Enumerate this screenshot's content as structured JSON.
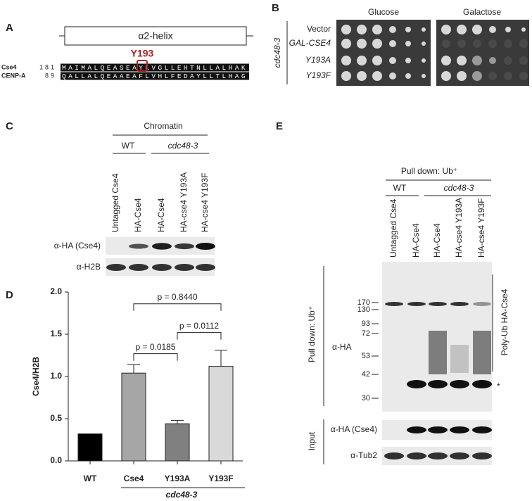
{
  "panels": [
    "A",
    "B",
    "C",
    "D",
    "E"
  ],
  "panel_a": {
    "domain": "α2-helix",
    "residue": "Y193",
    "rows": [
      {
        "name": "Cse4",
        "start": 181,
        "sequence": "MAIMALQEASEAYLVGLLEHTNLLALHAK"
      },
      {
        "name": "CENP-A",
        "start": 89,
        "sequence": "QALLALQEAAEAFLVHLFEDAYLLTLHAG"
      }
    ]
  },
  "panel_b": {
    "strain": "cdc48-3",
    "media": [
      "Glucose",
      "Galactose"
    ],
    "rows": [
      "Vector",
      "GAL-CSE4",
      "Y193A",
      "Y193F"
    ]
  },
  "panel_c": {
    "title": "Chromatin",
    "groups": [
      "WT",
      "cdc48-3"
    ],
    "lanes": [
      "Untagged Cse4",
      "HA-Cse4",
      "HA-Cse4",
      "HA-cse4 Y193A",
      "HA-cse4 Y193F"
    ],
    "blots": [
      "α-HA (Cse4)",
      "α-H2B"
    ]
  },
  "chart_data": {
    "type": "bar",
    "ylabel": "Cse4/H2B",
    "categories": [
      "WT",
      "Cse4",
      "Y193A",
      "Y193F"
    ],
    "values": [
      0.32,
      1.04,
      0.44,
      1.12
    ],
    "errors": [
      null,
      0.1,
      0.04,
      0.19
    ],
    "colors": [
      "#000000",
      "#a6a6a6",
      "#808080",
      "#d9d9d9"
    ],
    "ylim": [
      0,
      2
    ],
    "yticks": [
      {
        "value": 0,
        "label": "0.0"
      },
      0.5,
      {
        "value": 1,
        "label": "1.0"
      },
      1.5,
      {
        "value": 2,
        "label": "2.0"
      }
    ],
    "annotations": [
      "p = 0.8440",
      "p = 0.0112",
      "p = 0.0185"
    ],
    "group_label": "cdc48-3"
  },
  "panel_e": {
    "title": "Pull down: Ub⁺",
    "groups": [
      "WT",
      "cdc48-3"
    ],
    "lanes": [
      "Untagged Cse4",
      "HA-Cse4",
      "HA-Cse4",
      "HA-cse4 Y193A",
      "HA-cse4 Y193F"
    ],
    "sections": [
      "Pull down: Ub⁺",
      "Input"
    ],
    "markers": [
      170,
      130,
      93,
      72,
      53,
      42,
      30
    ],
    "blots": [
      "α-HA",
      "α-HA (Cse4)",
      "α-Tub2"
    ],
    "bracket_label": "Poly-Ub HA-Cse4",
    "asterisk": "*"
  }
}
